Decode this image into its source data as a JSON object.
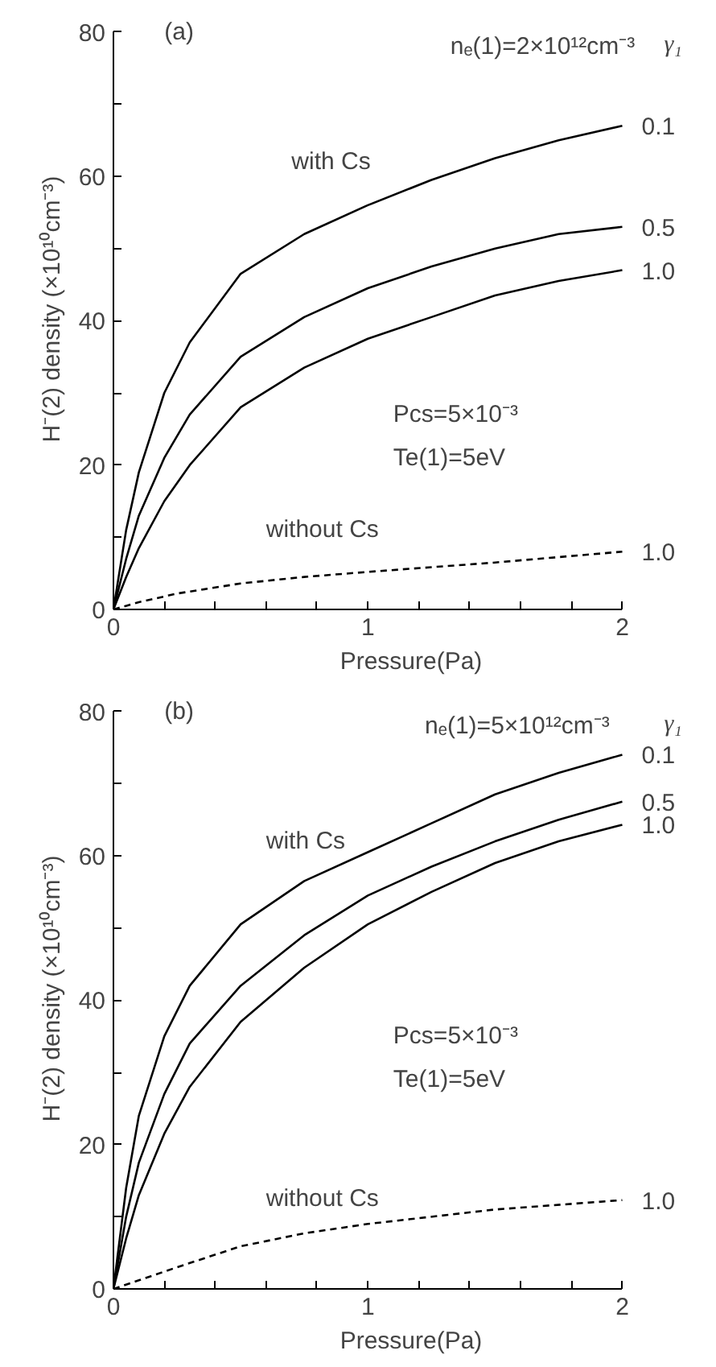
{
  "chart_data": [
    {
      "type": "line",
      "xlabel": "Pressure(Pa)",
      "ylabel": "H⁻(2) density (×10¹⁰cm⁻³)",
      "legend_title": "γ₁",
      "annotations": [
        "(a)",
        "nₑ(1)=2×10¹²cm⁻³",
        "with Cs",
        "Pcs=5×10⁻³",
        "Te(1)=5eV",
        "without Cs"
      ],
      "xlim": [
        0,
        2
      ],
      "ylim": [
        0,
        80
      ],
      "xticks": [
        0,
        {
          "value": 0.2,
          "label": null
        },
        {
          "value": 0.4,
          "label": null
        },
        {
          "value": 0.6,
          "label": null
        },
        {
          "value": 0.8,
          "label": null
        },
        1,
        {
          "value": 1.2,
          "label": null
        },
        {
          "value": 1.4,
          "label": null
        },
        {
          "value": 1.6,
          "label": null
        },
        {
          "value": 1.8,
          "label": null
        },
        2
      ],
      "yticks": [
        0,
        {
          "value": 10,
          "label": null
        },
        20,
        {
          "value": 30,
          "label": null
        },
        40,
        {
          "value": 50,
          "label": null
        },
        60,
        {
          "value": 70,
          "label": null
        },
        80
      ],
      "grid": false,
      "series": [
        {
          "name": "0.1",
          "color": "#000000",
          "x": [
            0,
            0.05,
            0.1,
            0.2,
            0.3,
            0.5,
            0.75,
            1,
            1.25,
            1.5,
            1.75,
            2
          ],
          "values": [
            0,
            11,
            19,
            30,
            37,
            46.5,
            52,
            56,
            59.5,
            62.5,
            65,
            67
          ]
        },
        {
          "name": "0.5",
          "color": "#000000",
          "x": [
            0,
            0.05,
            0.1,
            0.2,
            0.3,
            0.5,
            0.75,
            1,
            1.25,
            1.5,
            1.75,
            2
          ],
          "values": [
            0,
            7,
            13,
            21,
            27,
            35,
            40.5,
            44.5,
            47.5,
            50,
            52,
            53
          ]
        },
        {
          "name": "1.0",
          "color": "#000000",
          "x": [
            0,
            0.05,
            0.1,
            0.2,
            0.3,
            0.5,
            0.75,
            1,
            1.25,
            1.5,
            1.75,
            2
          ],
          "values": [
            0,
            4.5,
            8.5,
            15,
            20,
            28,
            33.5,
            37.5,
            40.5,
            43.5,
            45.5,
            47
          ]
        },
        {
          "name": "1.0",
          "color": "#000000",
          "line_style": "dashed",
          "x": [
            0,
            0.1,
            0.25,
            0.5,
            0.75,
            1,
            1.5,
            2
          ],
          "values": [
            0,
            1,
            2.2,
            3.6,
            4.5,
            5.2,
            6.5,
            8
          ]
        }
      ]
    },
    {
      "type": "line",
      "xlabel": "Pressure(Pa)",
      "ylabel": "H⁻(2) density (×10¹⁰cm⁻³)",
      "legend_title": "γ₁",
      "annotations": [
        "(b)",
        "nₑ(1)=5×10¹²cm⁻³",
        "with Cs",
        "Pcs=5×10⁻³",
        "Te(1)=5eV",
        "without Cs"
      ],
      "xlim": [
        0,
        2
      ],
      "ylim": [
        0,
        80
      ],
      "xticks": [
        0,
        {
          "value": 0.2,
          "label": null
        },
        {
          "value": 0.4,
          "label": null
        },
        {
          "value": 0.6,
          "label": null
        },
        {
          "value": 0.8,
          "label": null
        },
        1,
        {
          "value": 1.2,
          "label": null
        },
        {
          "value": 1.4,
          "label": null
        },
        {
          "value": 1.6,
          "label": null
        },
        {
          "value": 1.8,
          "label": null
        },
        2
      ],
      "yticks": [
        0,
        {
          "value": 10,
          "label": null
        },
        20,
        {
          "value": 30,
          "label": null
        },
        40,
        {
          "value": 50,
          "label": null
        },
        60,
        {
          "value": 70,
          "label": null
        },
        80
      ],
      "grid": false,
      "series": [
        {
          "name": "0.1",
          "color": "#000000",
          "x": [
            0,
            0.05,
            0.1,
            0.2,
            0.3,
            0.5,
            0.75,
            1,
            1.25,
            1.5,
            1.75,
            2
          ],
          "values": [
            0,
            14,
            24,
            35,
            42,
            50.5,
            56.5,
            60.5,
            64.5,
            68.5,
            71.5,
            74
          ]
        },
        {
          "name": "0.5",
          "color": "#000000",
          "x": [
            0,
            0.05,
            0.1,
            0.2,
            0.3,
            0.5,
            0.75,
            1,
            1.25,
            1.5,
            1.75,
            2
          ],
          "values": [
            0,
            10,
            17.5,
            27,
            34,
            42,
            49,
            54.5,
            58.5,
            62,
            65,
            67.5
          ]
        },
        {
          "name": "1.0",
          "color": "#000000",
          "x": [
            0,
            0.05,
            0.1,
            0.2,
            0.3,
            0.5,
            0.75,
            1,
            1.25,
            1.5,
            1.75,
            2
          ],
          "values": [
            0,
            7,
            13,
            21.5,
            28,
            37,
            44.5,
            50.5,
            55,
            59,
            62,
            64.3
          ]
        },
        {
          "name": "1.0",
          "color": "#000000",
          "line_style": "dashed",
          "x": [
            0,
            0.1,
            0.25,
            0.5,
            0.75,
            1,
            1.5,
            2
          ],
          "values": [
            0,
            1.2,
            3,
            5.9,
            7.7,
            9,
            11,
            12.3
          ]
        }
      ]
    }
  ]
}
